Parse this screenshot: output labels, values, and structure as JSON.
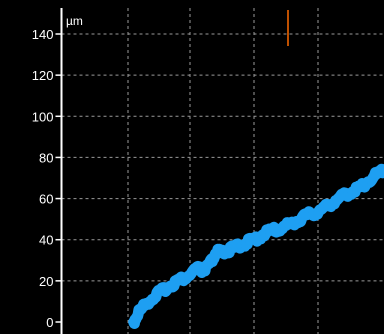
{
  "chart_data": {
    "type": "line",
    "ylabel": "µm",
    "ylim": [
      0,
      140
    ],
    "yticks": [
      0,
      20,
      40,
      60,
      80,
      100,
      120,
      140
    ],
    "ytick_labels": [
      "0",
      "20",
      "40",
      "60",
      "80",
      "100",
      "120",
      "140"
    ],
    "xlim": [
      0,
      100
    ],
    "grid": true,
    "background": "#000000",
    "series": [
      {
        "color": "#1e9ff2",
        "x": [
          22.4,
          24,
          27,
          30,
          33,
          36,
          39,
          42,
          44,
          46,
          48,
          50,
          52,
          55,
          58,
          61,
          64,
          67,
          70,
          73,
          76,
          79,
          82,
          85,
          88,
          91,
          94,
          97,
          100
        ],
        "y": [
          0,
          5,
          10,
          14,
          17,
          20,
          22,
          26,
          25,
          28,
          34,
          34,
          35,
          37,
          39,
          41,
          44,
          45,
          47,
          49,
          52,
          53,
          56,
          59,
          62,
          64,
          67,
          71,
          74
        ]
      }
    ],
    "marker_color": "#ff6a00"
  }
}
